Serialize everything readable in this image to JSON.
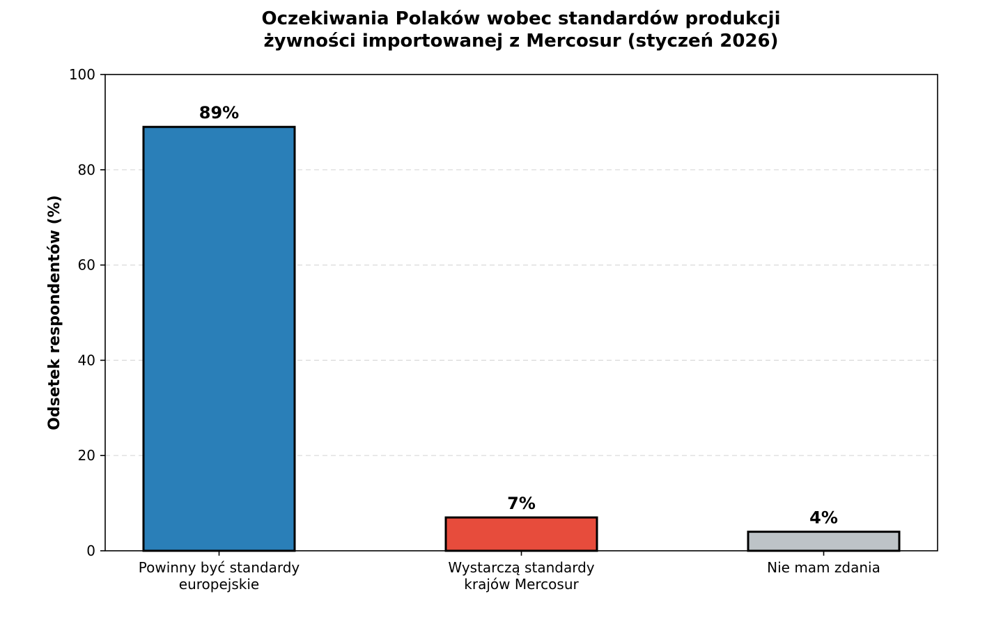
{
  "chart_data": {
    "type": "bar",
    "title": "Oczekiwania Polaków wobec standardów produkcji\nżywności importowanej z Mercosur (styczeń 2026)",
    "xlabel": "",
    "ylabel": "Odsetek respondentów (%)",
    "categories": [
      "Powinny być standardy\neuropejskie",
      "Wystarczą standardy\nkrajów Mercosur",
      "Nie mam zdania"
    ],
    "values": [
      89,
      7,
      4
    ],
    "value_labels": [
      "89%",
      "7%",
      "4%"
    ],
    "colors": [
      "#2a7fb8",
      "#e74c3c",
      "#bdc3c7"
    ],
    "edge_color": "#000000",
    "ylim": [
      0,
      100
    ],
    "yticks": [
      0,
      20,
      40,
      60,
      80,
      100
    ],
    "grid": "y-dashed",
    "legend": "none"
  }
}
